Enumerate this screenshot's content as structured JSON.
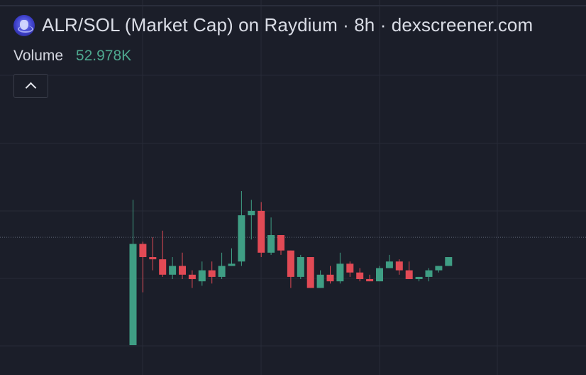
{
  "header": {
    "title": "ALR/SOL (Market Cap) on Raydium · 8h · dexscreener.com",
    "icon": "alr-token-icon"
  },
  "volume": {
    "label": "Volume",
    "value": "52.978K"
  },
  "colors": {
    "background": "#1b1e29",
    "grid": "#272b38",
    "up": "#3f9e84",
    "down": "#e24a55",
    "volume_value": "#4ea88f",
    "last_price_line": "#5d6576"
  },
  "chart_data": {
    "type": "candlestick",
    "grid": true,
    "last_price_line": 2.45,
    "series": [
      {
        "name": "",
        "candles": [
          {
            "o": 0.0,
            "h": 3.3,
            "l": 0.0,
            "c": 2.3
          },
          {
            "o": 2.3,
            "h": 2.35,
            "l": 1.2,
            "c": 2.0
          },
          {
            "o": 2.0,
            "h": 2.45,
            "l": 1.7,
            "c": 1.95
          },
          {
            "o": 1.95,
            "h": 2.6,
            "l": 1.55,
            "c": 1.6
          },
          {
            "o": 1.6,
            "h": 2.0,
            "l": 1.5,
            "c": 1.8
          },
          {
            "o": 1.8,
            "h": 2.1,
            "l": 1.5,
            "c": 1.6
          },
          {
            "o": 1.6,
            "h": 1.7,
            "l": 1.3,
            "c": 1.5
          },
          {
            "o": 1.45,
            "h": 1.9,
            "l": 1.35,
            "c": 1.7
          },
          {
            "o": 1.7,
            "h": 1.9,
            "l": 1.4,
            "c": 1.55
          },
          {
            "o": 1.55,
            "h": 2.1,
            "l": 1.5,
            "c": 1.8
          },
          {
            "o": 1.8,
            "h": 2.2,
            "l": 1.8,
            "c": 1.85
          },
          {
            "o": 1.9,
            "h": 3.5,
            "l": 1.8,
            "c": 2.95
          },
          {
            "o": 2.95,
            "h": 3.3,
            "l": 2.4,
            "c": 3.05
          },
          {
            "o": 3.05,
            "h": 3.25,
            "l": 2.0,
            "c": 2.1
          },
          {
            "o": 2.1,
            "h": 2.9,
            "l": 2.05,
            "c": 2.5
          },
          {
            "o": 2.5,
            "h": 2.5,
            "l": 2.05,
            "c": 2.15
          },
          {
            "o": 2.15,
            "h": 2.15,
            "l": 1.3,
            "c": 1.55
          },
          {
            "o": 1.55,
            "h": 2.05,
            "l": 1.5,
            "c": 2.0
          },
          {
            "o": 2.0,
            "h": 2.0,
            "l": 1.3,
            "c": 1.3
          },
          {
            "o": 1.3,
            "h": 1.7,
            "l": 1.3,
            "c": 1.6
          },
          {
            "o": 1.6,
            "h": 1.8,
            "l": 1.4,
            "c": 1.45
          },
          {
            "o": 1.45,
            "h": 2.1,
            "l": 1.4,
            "c": 1.85
          },
          {
            "o": 1.85,
            "h": 1.9,
            "l": 1.55,
            "c": 1.65
          },
          {
            "o": 1.65,
            "h": 1.75,
            "l": 1.45,
            "c": 1.5
          },
          {
            "o": 1.5,
            "h": 1.6,
            "l": 1.45,
            "c": 1.45
          },
          {
            "o": 1.45,
            "h": 1.8,
            "l": 1.45,
            "c": 1.75
          },
          {
            "o": 1.75,
            "h": 2.05,
            "l": 1.75,
            "c": 1.9
          },
          {
            "o": 1.9,
            "h": 1.95,
            "l": 1.6,
            "c": 1.7
          },
          {
            "o": 1.7,
            "h": 1.9,
            "l": 1.5,
            "c": 1.5
          },
          {
            "o": 1.5,
            "h": 1.55,
            "l": 1.45,
            "c": 1.55
          },
          {
            "o": 1.55,
            "h": 1.75,
            "l": 1.45,
            "c": 1.7
          },
          {
            "o": 1.7,
            "h": 1.8,
            "l": 1.65,
            "c": 1.8
          },
          {
            "o": 1.8,
            "h": 2.0,
            "l": 1.8,
            "c": 2.0
          }
        ]
      }
    ],
    "ylim": [
      0,
      5.1
    ]
  }
}
